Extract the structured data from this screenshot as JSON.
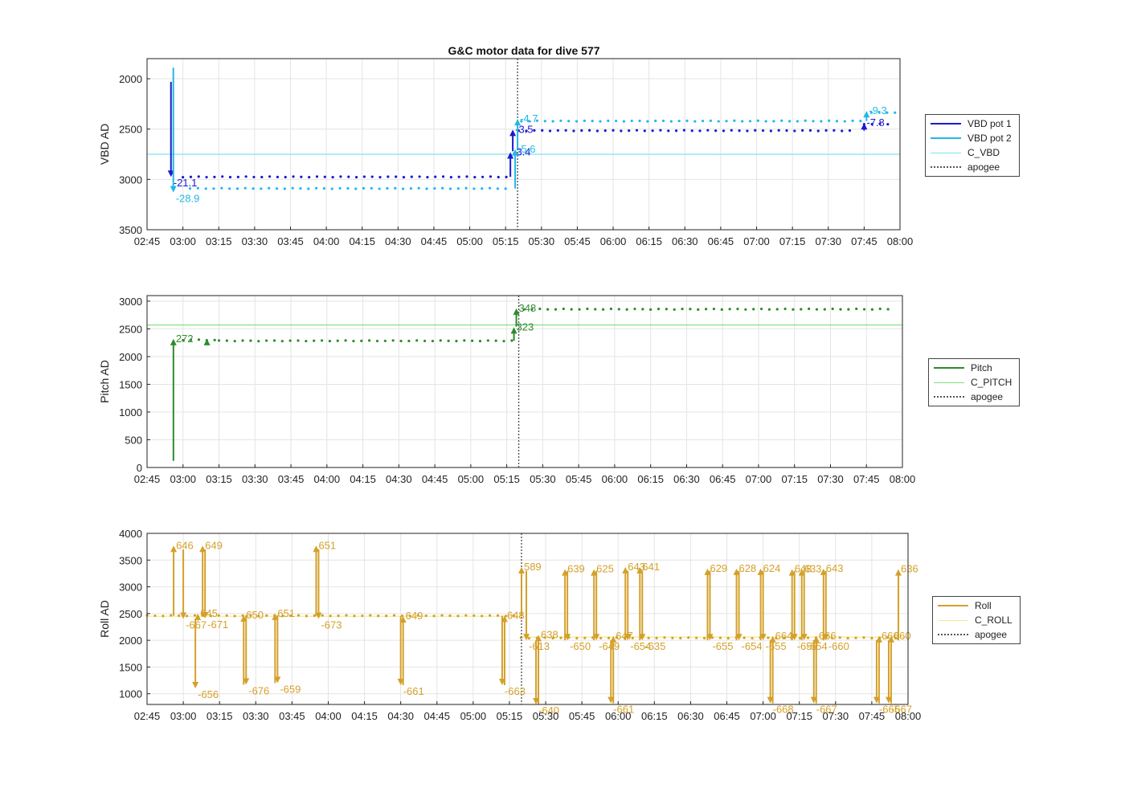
{
  "title": "G&C motor data for dive 577",
  "x_ticks": [
    "02:45",
    "03:00",
    "03:15",
    "03:30",
    "03:45",
    "04:00",
    "04:15",
    "04:30",
    "04:45",
    "05:00",
    "05:15",
    "05:30",
    "05:45",
    "06:00",
    "06:15",
    "06:30",
    "06:45",
    "07:00",
    "07:15",
    "07:30",
    "07:45",
    "08:00"
  ],
  "colors": {
    "vbd1": "#1a1ad0",
    "vbd2": "#22b8e8",
    "cvbd": "#7fe3ef",
    "pitch": "#2e8b2e",
    "cpitch": "#7ee07e",
    "roll": "#d4a02a",
    "croll": "#f2ea8c",
    "apogee": "#555555"
  },
  "chart_data": [
    {
      "type": "scatter",
      "ylabel": "VBD AD",
      "ylim": [
        3500,
        1800
      ],
      "yticks": [
        2000,
        2500,
        3000,
        3500
      ],
      "legend": [
        "VBD pot 1",
        "VBD pot 2",
        "C_VBD",
        "apogee"
      ],
      "series": [
        {
          "name": "VBD pot 1",
          "level_segments": [
            [
              3.0,
              5.3,
              2975
            ],
            [
              5.34,
              7.65,
              2515
            ],
            [
              7.75,
              7.92,
              2450
            ]
          ]
        },
        {
          "name": "VBD pot 2",
          "level_segments": [
            [
              3.05,
              5.3,
              3090
            ],
            [
              5.36,
              7.75,
              2420
            ],
            [
              7.8,
              7.98,
              2335
            ]
          ]
        }
      ],
      "reference_line": {
        "name": "C_VBD",
        "y": 2750
      },
      "apogee_time": "05:20",
      "arrows": [
        {
          "series": "VBD pot 1",
          "x": "02:55",
          "from": 2030,
          "to": 2975,
          "label": "-21.1"
        },
        {
          "series": "VBD pot 2",
          "x": "02:56",
          "from": 1890,
          "to": 3130,
          "label": "-28.9"
        },
        {
          "series": "VBD pot 1",
          "x": "05:17",
          "from": 2975,
          "to": 2730,
          "label": "-3.4"
        },
        {
          "series": "VBD pot 1",
          "x": "05:18",
          "from": 2720,
          "to": 2505,
          "label": "-3.5"
        },
        {
          "series": "VBD pot 2",
          "x": "05:19",
          "from": 3090,
          "to": 2700,
          "label": "-5.6"
        },
        {
          "series": "VBD pot 2",
          "x": "05:20",
          "from": 2700,
          "to": 2400,
          "label": "-4.7"
        },
        {
          "series": "VBD pot 1",
          "x": "07:45",
          "from": 2515,
          "to": 2440,
          "label": "-7.8"
        },
        {
          "series": "VBD pot 2",
          "x": "07:46",
          "from": 2420,
          "to": 2320,
          "label": "-9.3"
        }
      ]
    },
    {
      "type": "scatter",
      "ylabel": "Pitch AD",
      "ylim": [
        0,
        3100
      ],
      "yticks": [
        0,
        500,
        1000,
        1500,
        2000,
        2500,
        3000
      ],
      "legend": [
        "Pitch",
        "C_PITCH",
        "apogee"
      ],
      "series": [
        {
          "name": "Pitch",
          "level_segments": [
            [
              3.0,
              3.25,
              2300
            ],
            [
              3.25,
              5.3,
              2285
            ],
            [
              5.37,
              7.92,
              2855
            ]
          ]
        }
      ],
      "reference_line": {
        "name": "C_PITCH",
        "y": 2570
      },
      "apogee_time": "05:20",
      "arrows": [
        {
          "series": "Pitch",
          "x": "02:56",
          "from": 120,
          "to": 2320,
          "label": "272"
        },
        {
          "series": "Pitch",
          "x": "03:10",
          "from": 2300,
          "to": 2320,
          "label": ""
        },
        {
          "series": "Pitch",
          "x": "05:18",
          "from": 2285,
          "to": 2530,
          "label": "323"
        },
        {
          "series": "Pitch",
          "x": "05:19",
          "from": 2540,
          "to": 2870,
          "label": "348"
        }
      ]
    },
    {
      "type": "scatter",
      "ylabel": "Roll AD",
      "ylim": [
        800,
        4000
      ],
      "yticks": [
        1000,
        1500,
        2000,
        2500,
        3000,
        3500,
        4000
      ],
      "legend": [
        "Roll",
        "C_ROLL",
        "apogee"
      ],
      "series": [
        {
          "name": "Roll",
          "level_segments": [
            [
              2.75,
              5.3,
              2460
            ],
            [
              5.33,
              7.95,
              2045
            ]
          ]
        }
      ],
      "reference_line": {
        "name": "C_ROLL",
        "y": 2450,
        "x_end": "05:20"
      },
      "reference_line_2": {
        "name": "C_ROLL",
        "y": 2060,
        "x_start": "05:20"
      },
      "apogee_time": "05:20",
      "arrows": [
        {
          "series": "Roll",
          "x": "02:56",
          "from": 2460,
          "to": 3770,
          "label": "646"
        },
        {
          "series": "Roll",
          "x": "03:00",
          "from": 3700,
          "to": 2400,
          "label": "-667"
        },
        {
          "series": "Roll",
          "x": "03:05",
          "from": 2400,
          "to": 1100,
          "label": "-656"
        },
        {
          "series": "Roll",
          "x": "03:06",
          "from": 2370,
          "to": 2500,
          "label": "645"
        },
        {
          "series": "Roll",
          "x": "03:08",
          "from": 2460,
          "to": 3770,
          "label": "649"
        },
        {
          "series": "Roll",
          "x": "03:09",
          "from": 3700,
          "to": 2410,
          "label": "-671"
        },
        {
          "series": "Roll",
          "x": "03:25",
          "from": 1170,
          "to": 2470,
          "label": "650"
        },
        {
          "series": "Roll",
          "x": "03:26",
          "from": 2470,
          "to": 1170,
          "label": "-676"
        },
        {
          "series": "Roll",
          "x": "03:38",
          "from": 1200,
          "to": 2500,
          "label": "651"
        },
        {
          "series": "Roll",
          "x": "03:39",
          "from": 2470,
          "to": 1200,
          "label": "-659"
        },
        {
          "series": "Roll",
          "x": "03:55",
          "from": 2460,
          "to": 3770,
          "label": "651"
        },
        {
          "series": "Roll",
          "x": "03:56",
          "from": 3700,
          "to": 2400,
          "label": "-673"
        },
        {
          "series": "Roll",
          "x": "04:30",
          "from": 2450,
          "to": 1160,
          "label": "-661"
        },
        {
          "series": "Roll",
          "x": "04:31",
          "from": 1160,
          "to": 2450,
          "label": "649"
        },
        {
          "series": "Roll",
          "x": "05:12",
          "from": 2460,
          "to": 1160,
          "label": "-663"
        },
        {
          "series": "Roll",
          "x": "05:13",
          "from": 1160,
          "to": 2460,
          "label": "648"
        },
        {
          "series": "Roll",
          "x": "05:20",
          "from": 2450,
          "to": 3370,
          "label": "589"
        },
        {
          "series": "Roll",
          "x": "05:22",
          "from": 3300,
          "to": 2000,
          "label": "-613"
        },
        {
          "series": "Roll",
          "x": "05:26",
          "from": 2000,
          "to": 800,
          "label": "-640"
        },
        {
          "series": "Roll",
          "x": "05:27",
          "from": 800,
          "to": 2100,
          "label": "638"
        },
        {
          "series": "Roll",
          "x": "05:38",
          "from": 2000,
          "to": 3330,
          "label": "639"
        },
        {
          "series": "Roll",
          "x": "05:39",
          "from": 3300,
          "to": 2000,
          "label": "-650"
        },
        {
          "series": "Roll",
          "x": "05:50",
          "from": 2000,
          "to": 3330,
          "label": "625"
        },
        {
          "series": "Roll",
          "x": "05:51",
          "from": 3300,
          "to": 2000,
          "label": "-649"
        },
        {
          "series": "Roll",
          "x": "05:57",
          "from": 2000,
          "to": 820,
          "label": "-661"
        },
        {
          "series": "Roll",
          "x": "05:58",
          "from": 820,
          "to": 2080,
          "label": "647"
        },
        {
          "series": "Roll",
          "x": "06:03",
          "from": 2000,
          "to": 3370,
          "label": "643"
        },
        {
          "series": "Roll",
          "x": "06:04",
          "from": 3300,
          "to": 2000,
          "label": "-654"
        },
        {
          "series": "Roll",
          "x": "06:09",
          "from": 2000,
          "to": 3370,
          "label": "641"
        },
        {
          "series": "Roll",
          "x": "06:10",
          "from": 3300,
          "to": 2000,
          "label": "-635"
        },
        {
          "series": "Roll",
          "x": "06:37",
          "from": 2000,
          "to": 3340,
          "label": "629"
        },
        {
          "series": "Roll",
          "x": "06:38",
          "from": 3300,
          "to": 2000,
          "label": "-655"
        },
        {
          "series": "Roll",
          "x": "06:49",
          "from": 2000,
          "to": 3340,
          "label": "628"
        },
        {
          "series": "Roll",
          "x": "06:50",
          "from": 3300,
          "to": 2000,
          "label": "-654"
        },
        {
          "series": "Roll",
          "x": "06:59",
          "from": 2000,
          "to": 3340,
          "label": "624"
        },
        {
          "series": "Roll",
          "x": "07:00",
          "from": 3300,
          "to": 2000,
          "label": "-655"
        },
        {
          "series": "Roll",
          "x": "07:03",
          "from": 2000,
          "to": 820,
          "label": "-668"
        },
        {
          "series": "Roll",
          "x": "07:04",
          "from": 820,
          "to": 2080,
          "label": "664"
        },
        {
          "series": "Roll",
          "x": "07:12",
          "from": 2000,
          "to": 3330,
          "label": "648"
        },
        {
          "series": "Roll",
          "x": "07:13",
          "from": 3300,
          "to": 2000,
          "label": "-656"
        },
        {
          "series": "Roll",
          "x": "07:16",
          "from": 2000,
          "to": 3330,
          "label": "633"
        },
        {
          "series": "Roll",
          "x": "07:17",
          "from": 3300,
          "to": 2000,
          "label": "-654"
        },
        {
          "series": "Roll",
          "x": "07:21",
          "from": 2000,
          "to": 820,
          "label": "-667"
        },
        {
          "series": "Roll",
          "x": "07:22",
          "from": 820,
          "to": 2080,
          "label": "666"
        },
        {
          "series": "Roll",
          "x": "07:25",
          "from": 2000,
          "to": 3340,
          "label": "643"
        },
        {
          "series": "Roll",
          "x": "07:26",
          "from": 3300,
          "to": 2000,
          "label": "-660"
        },
        {
          "series": "Roll",
          "x": "07:47",
          "from": 2000,
          "to": 820,
          "label": "-665"
        },
        {
          "series": "Roll",
          "x": "07:48",
          "from": 820,
          "to": 2080,
          "label": "666"
        },
        {
          "series": "Roll",
          "x": "07:52",
          "from": 2000,
          "to": 820,
          "label": "-667"
        },
        {
          "series": "Roll",
          "x": "07:53",
          "from": 820,
          "to": 2080,
          "label": "660"
        },
        {
          "series": "Roll",
          "x": "07:56",
          "from": 2000,
          "to": 3330,
          "label": "636"
        }
      ]
    }
  ]
}
